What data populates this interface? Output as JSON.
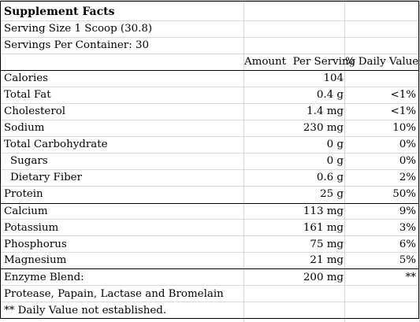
{
  "title": "Supplement Facts",
  "serving_size": "Serving Size 1 Scoop (30.8)",
  "servings_per_container": "Servings Per Container: 30",
  "headers": {
    "amount": "Amount  Per Serving",
    "dv": "% Daily Value"
  },
  "rows": [
    {
      "name": "Calories",
      "amount": "104",
      "dv": ""
    },
    {
      "name": "Total Fat",
      "amount": "0.4 g",
      "dv": "<1%"
    },
    {
      "name": "Cholesterol",
      "amount": "1.4 mg",
      "dv": "<1%"
    },
    {
      "name": "Sodium",
      "amount": "230 mg",
      "dv": "10%"
    },
    {
      "name": "Total Carbohydrate",
      "amount": "0 g",
      "dv": "0%"
    },
    {
      "name": "Sugars",
      "amount": "0 g",
      "dv": "0%"
    },
    {
      "name": "Dietary Fiber",
      "amount": "0.6 g",
      "dv": "2%"
    },
    {
      "name": "Protein",
      "amount": "25 g",
      "dv": "50%"
    },
    {
      "name": "Calcium",
      "amount": "113 mg",
      "dv": "9%"
    },
    {
      "name": "Potassium",
      "amount": "161 mg",
      "dv": "3%"
    },
    {
      "name": "Phosphorus",
      "amount": "75 mg",
      "dv": "6%"
    },
    {
      "name": "Magnesium",
      "amount": "21 mg",
      "dv": "5%"
    },
    {
      "name": "Enzyme Blend:",
      "amount": "200 mg",
      "dv": "**"
    }
  ],
  "blend_detail": "Protease, Papain, Lactase and Bromelain",
  "footnote": "** Daily Value not established."
}
